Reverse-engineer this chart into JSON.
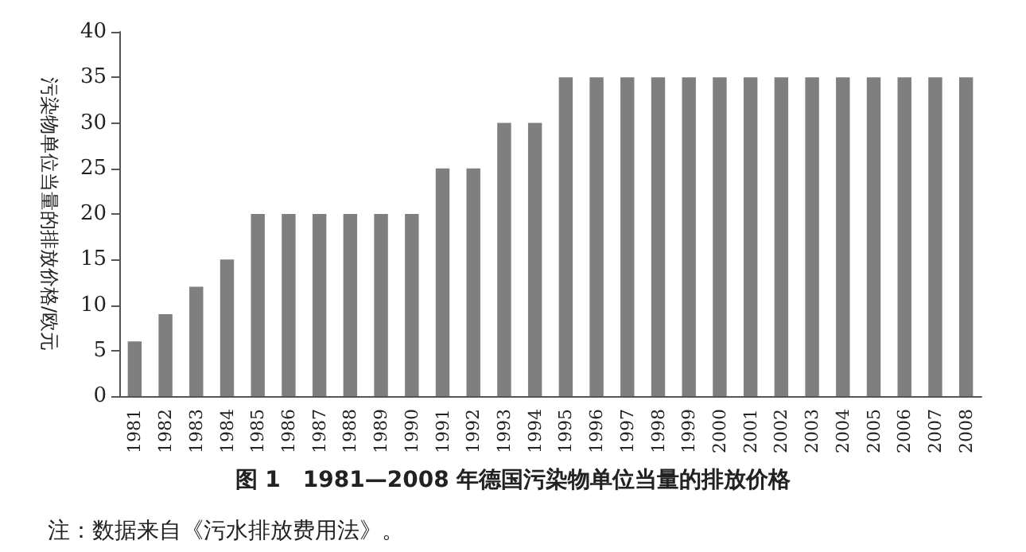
{
  "chart_data": {
    "type": "bar",
    "title": "图 1　1981—2008 年德国污染物单位当量的排放价格",
    "ylabel": "污染物单位当量的排放价格/欧元",
    "categories": [
      "1981",
      "1982",
      "1983",
      "1984",
      "1985",
      "1986",
      "1987",
      "1988",
      "1989",
      "1990",
      "1991",
      "1992",
      "1993",
      "1994",
      "1995",
      "1996",
      "1997",
      "1998",
      "1999",
      "2000",
      "2001",
      "2002",
      "2003",
      "2004",
      "2005",
      "2006",
      "2007",
      "2008"
    ],
    "values": [
      6,
      9,
      12,
      15,
      20,
      20,
      20,
      20,
      20,
      20,
      25,
      25,
      30,
      30,
      35,
      35,
      35,
      35,
      35,
      35,
      35,
      35,
      35,
      35,
      35,
      35,
      35,
      35
    ],
    "color": "#7f7f7f",
    "ylim": [
      0,
      40
    ],
    "yticks": [
      0,
      5,
      10,
      15,
      20,
      25,
      30,
      35,
      40
    ],
    "grid": false,
    "annotations": [
      "注：数据来自《污水排放费用法》。"
    ]
  }
}
